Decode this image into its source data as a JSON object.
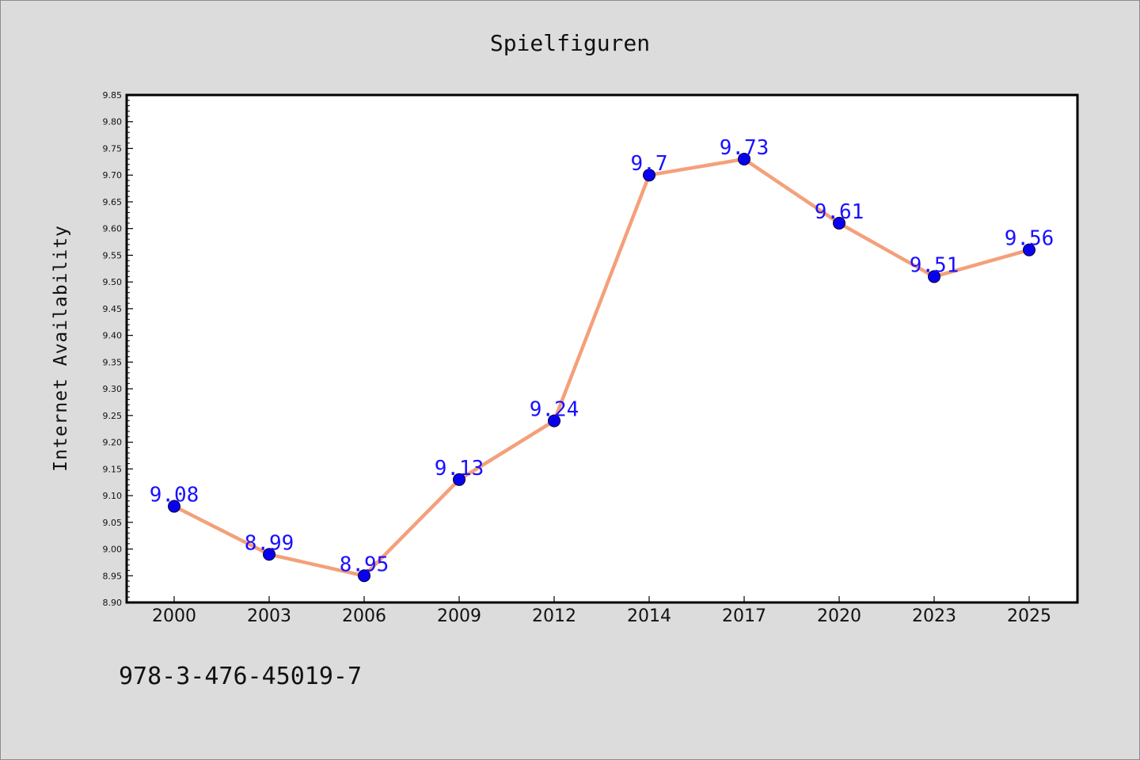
{
  "chart_data": {
    "type": "line",
    "title": "Spielfiguren",
    "xlabel": "",
    "ylabel": "Internet Availability",
    "categories": [
      "2000",
      "2003",
      "2006",
      "2009",
      "2012",
      "2014",
      "2017",
      "2020",
      "2023",
      "2025"
    ],
    "series": [
      {
        "values": [
          9.08,
          8.99,
          8.95,
          9.13,
          9.24,
          9.7,
          9.73,
          9.61,
          9.51,
          9.56
        ],
        "labels": [
          "9.08",
          "8.99",
          "8.95",
          "9.13",
          "9.24",
          "9.7",
          "9.73",
          "9.61",
          "9.51",
          "9.56"
        ],
        "line_color": "#f4a07a",
        "marker_color": "#0a00f0",
        "label_color": "#1a10ff"
      }
    ],
    "ylim": [
      8.9,
      9.85
    ],
    "yticks": [
      "8.90",
      "8.95",
      "9.00",
      "9.05",
      "9.10",
      "9.15",
      "9.20",
      "9.25",
      "9.30",
      "9.35",
      "9.40",
      "9.45",
      "9.50",
      "9.55",
      "9.60",
      "9.65",
      "9.70",
      "9.75",
      "9.80",
      "9.85"
    ],
    "grid": false,
    "legend": "none",
    "background_color": "#dcdcdc",
    "plot_background_color": "#ffffff"
  },
  "footer": {
    "isbn": "978-3-476-45019-7"
  }
}
